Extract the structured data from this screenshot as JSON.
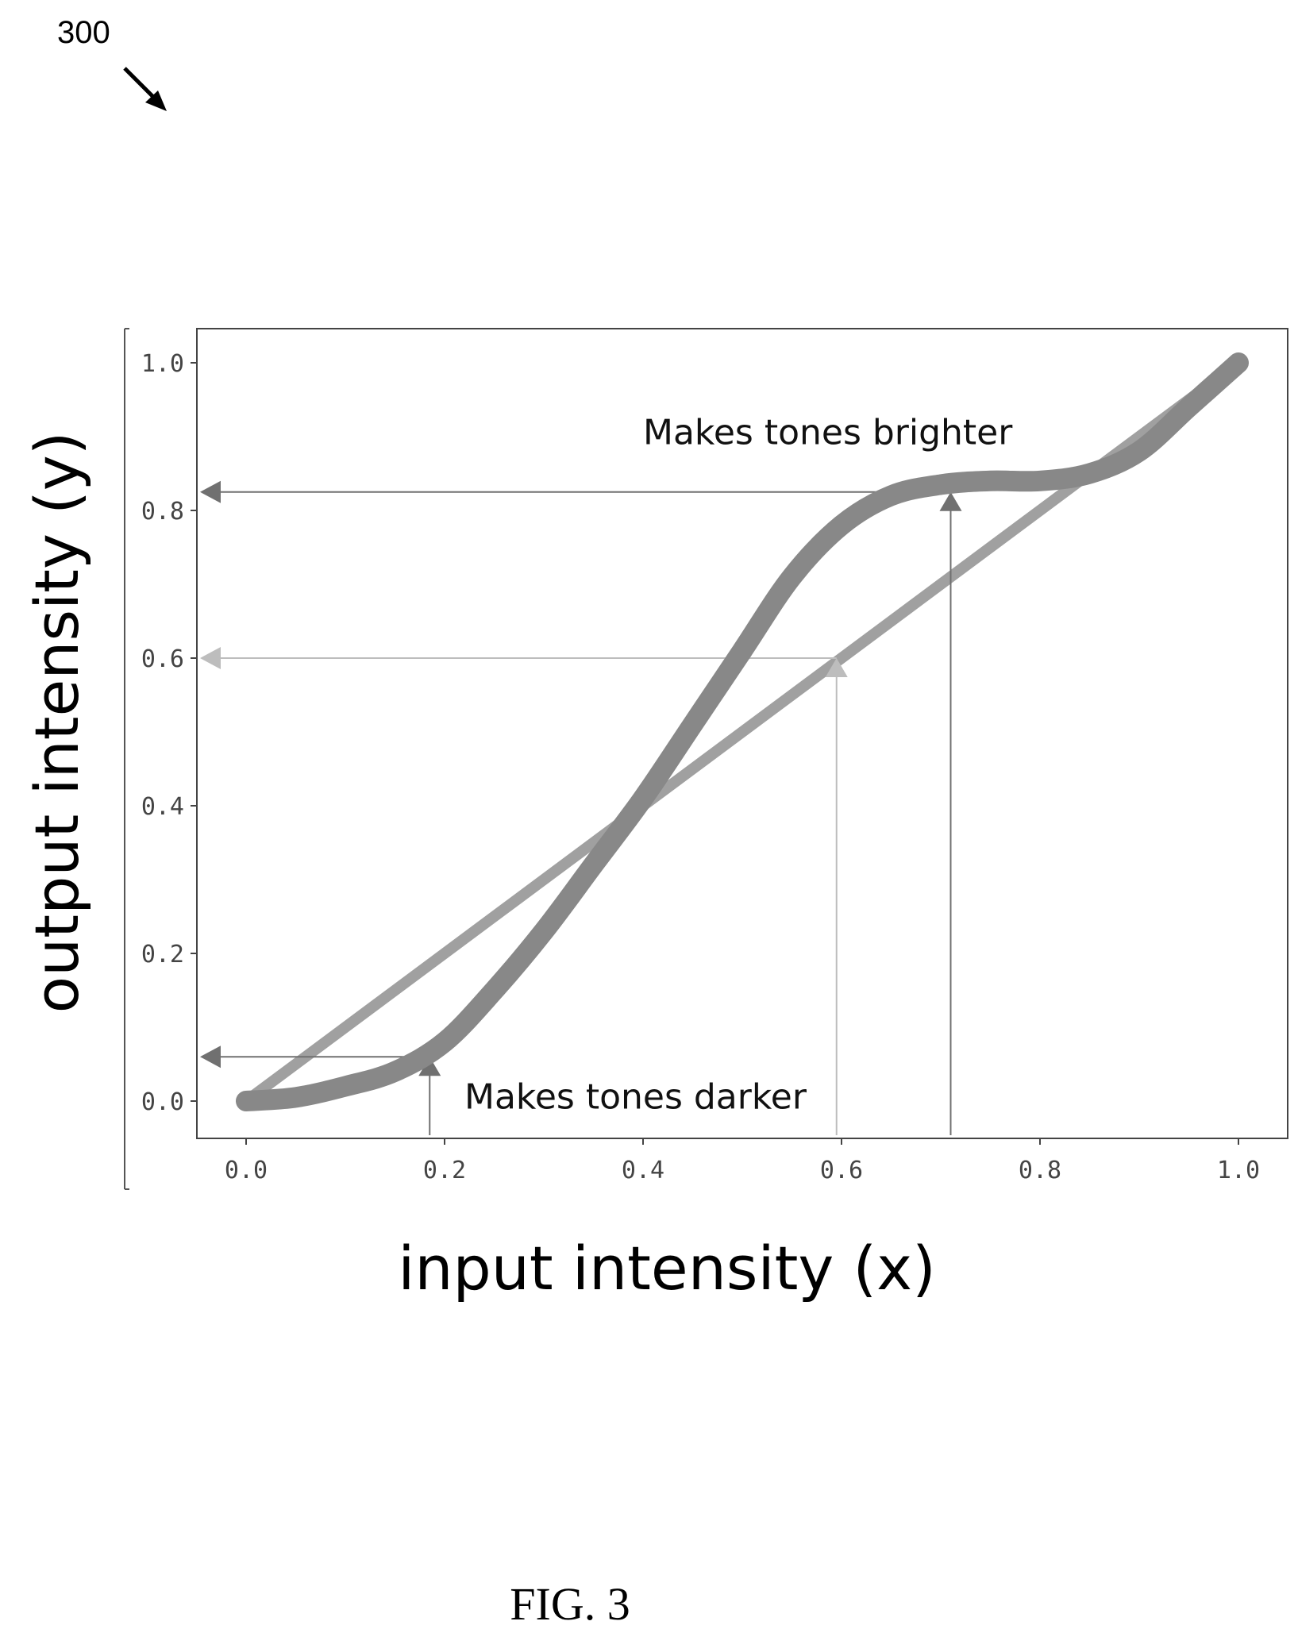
{
  "figure": {
    "reference_numeral": "300",
    "caption": "FIG. 3"
  },
  "chart_data": {
    "type": "line",
    "xlabel": "input intensity (x)",
    "ylabel": "output intensity (y)",
    "xlim": [
      -0.05,
      1.05
    ],
    "ylim": [
      -0.05,
      1.05
    ],
    "xticks": [
      "0.0",
      "0.2",
      "0.4",
      "0.6",
      "0.8",
      "1.0"
    ],
    "yticks": [
      "0.0",
      "0.2",
      "0.4",
      "0.6",
      "0.8",
      "1.0"
    ],
    "grid": false,
    "series": [
      {
        "role": "identity-line",
        "color": "#a0a0a0",
        "x": [
          0.0,
          1.0
        ],
        "y": [
          0.0,
          1.0
        ]
      },
      {
        "role": "tone-curve",
        "color": "#888888",
        "x": [
          0.0,
          0.05,
          0.1,
          0.15,
          0.2,
          0.25,
          0.3,
          0.35,
          0.4,
          0.45,
          0.5,
          0.55,
          0.6,
          0.65,
          0.7,
          0.75,
          0.8,
          0.85,
          0.9,
          0.95,
          1.0
        ],
        "y": [
          0.0,
          0.005,
          0.02,
          0.04,
          0.08,
          0.15,
          0.23,
          0.32,
          0.41,
          0.51,
          0.61,
          0.71,
          0.78,
          0.82,
          0.835,
          0.84,
          0.84,
          0.85,
          0.88,
          0.94,
          1.0
        ]
      }
    ],
    "annotations": [
      {
        "text": "Makes tones brighter",
        "x": 0.4,
        "y": 0.89
      },
      {
        "text": "Makes tones darker",
        "x": 0.22,
        "y": -0.01
      }
    ],
    "arrows": [
      {
        "from_x": 0.185,
        "to_y": 0.06,
        "color": "#707070"
      },
      {
        "from_x": 0.71,
        "to_y": 0.825,
        "color": "#707070"
      },
      {
        "from_x": 0.595,
        "to_y": 0.6,
        "color": "#bdbdbd"
      }
    ]
  }
}
